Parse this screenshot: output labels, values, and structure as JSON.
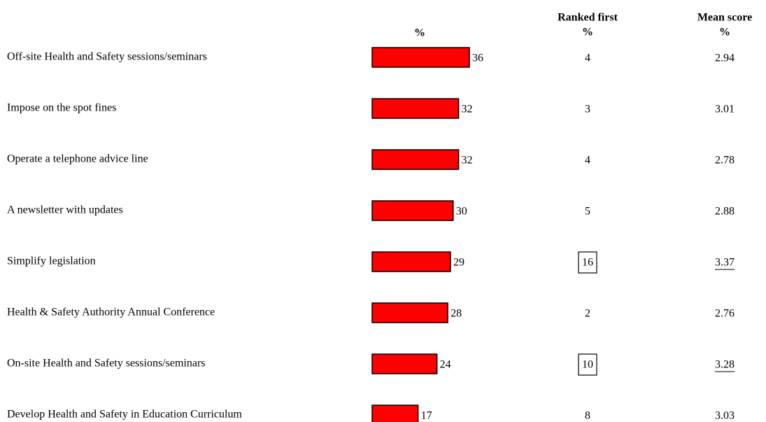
{
  "chart_data": {
    "type": "bar",
    "orientation": "horizontal",
    "bar_header": "%",
    "color": "#ff0000",
    "categories": [
      "Off-site Health and Safety sessions/seminars",
      "Impose on the spot fines",
      "Operate a telephone advice line",
      "A newsletter with updates",
      "Simplify legislation",
      "Health & Safety Authority Annual Conference",
      "On-site Health and Safety sessions/seminars",
      "Develop Health and Safety in Education Curriculum"
    ],
    "values": [
      36,
      32,
      32,
      30,
      29,
      28,
      24,
      17
    ],
    "columns": [
      {
        "title": "Ranked first",
        "unit": "%",
        "style": "boxed",
        "values": [
          4,
          3,
          4,
          5,
          16,
          2,
          10,
          8
        ],
        "highlight": [
          false,
          false,
          false,
          false,
          true,
          false,
          true,
          false
        ]
      },
      {
        "title": "Mean score",
        "unit": "%",
        "style": "underlined",
        "values": [
          2.94,
          3.01,
          2.78,
          2.88,
          3.37,
          2.76,
          3.28,
          3.03
        ],
        "highlight": [
          false,
          false,
          false,
          false,
          true,
          false,
          true,
          false
        ]
      }
    ]
  }
}
